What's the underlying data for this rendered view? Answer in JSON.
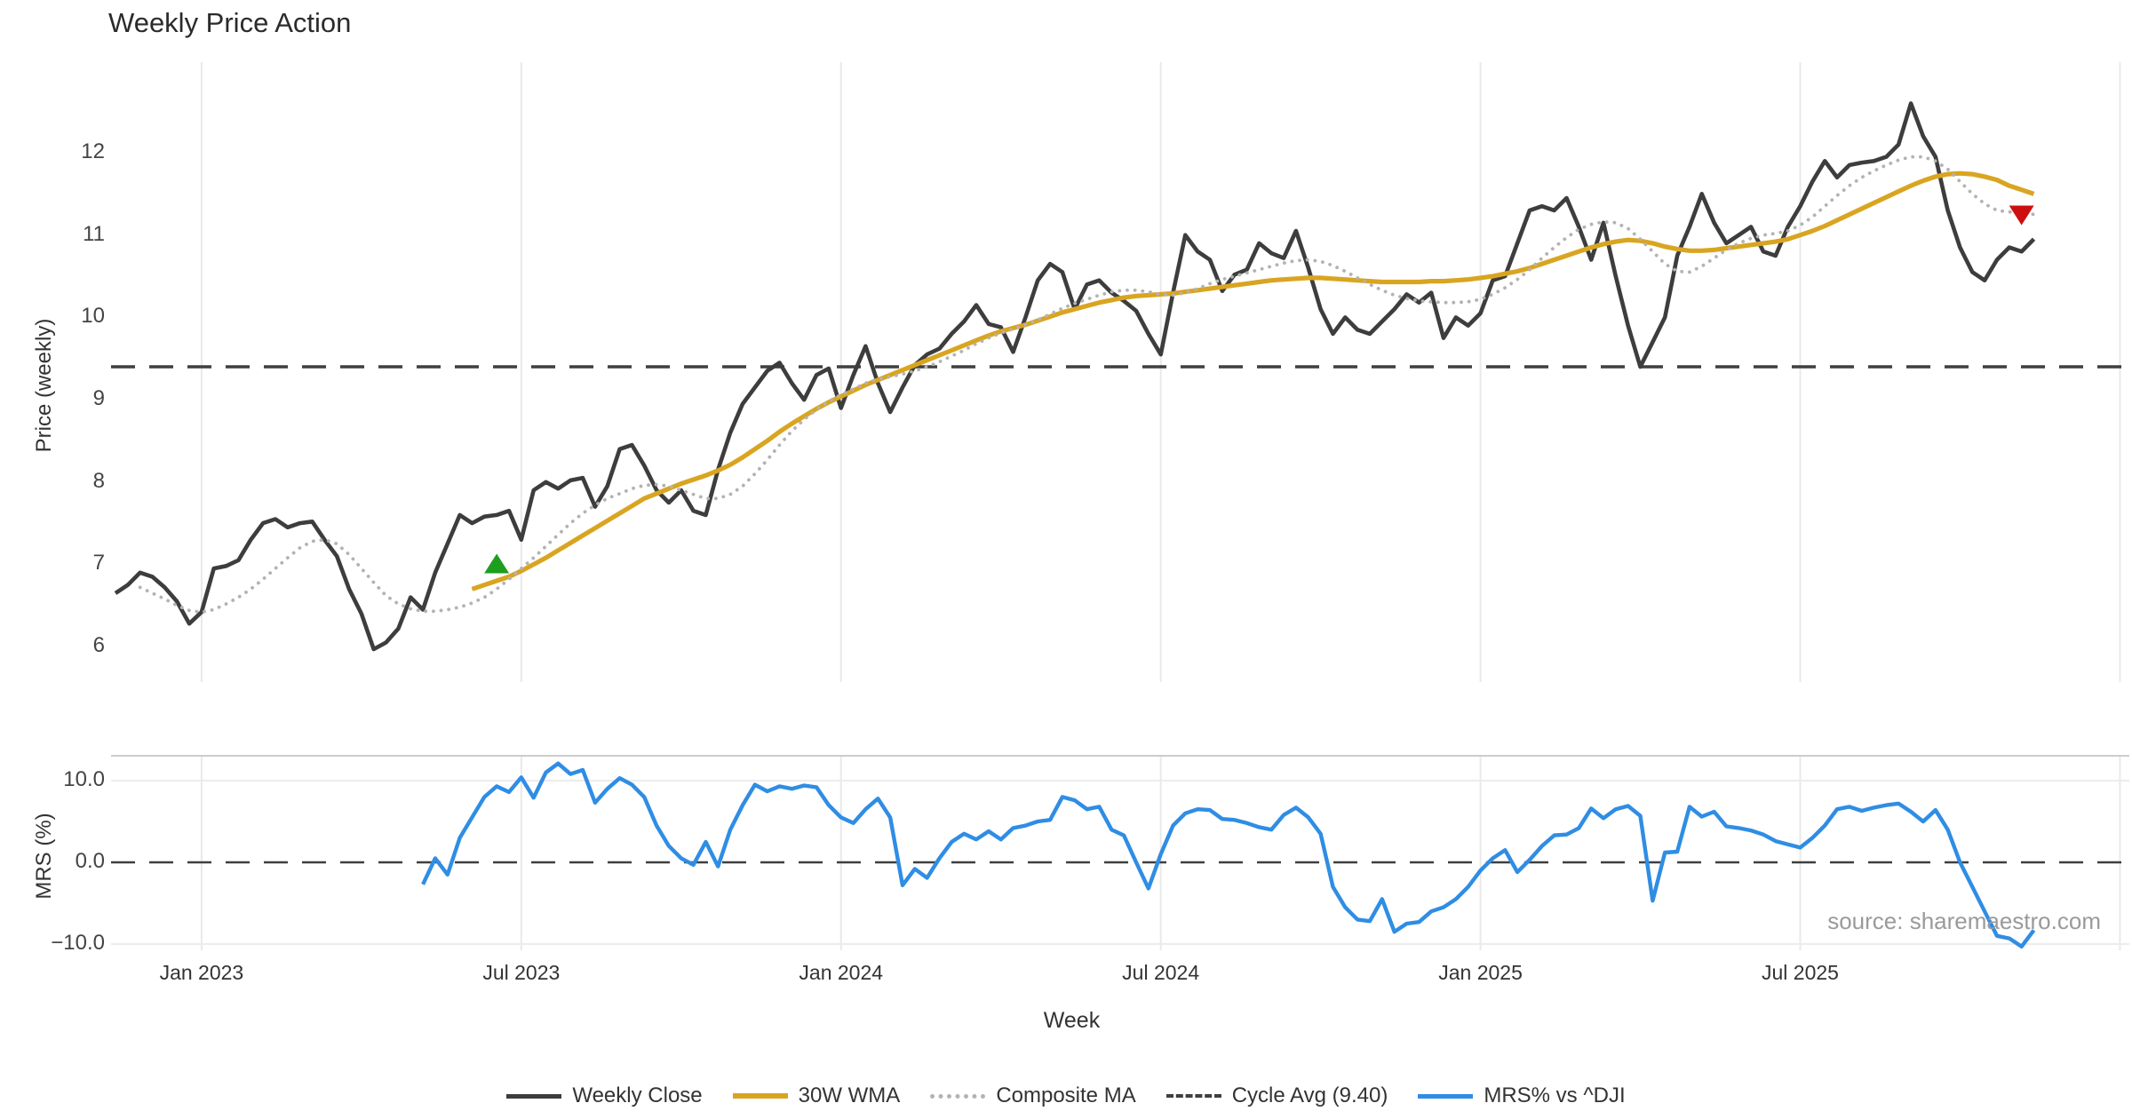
{
  "title": "Weekly Price Action",
  "source_credit": "source: sharemaestro.com",
  "axes": {
    "price_label": "Price (weekly)",
    "mrs_label": "MRS (%)",
    "week_label": "Week",
    "price_ticks": [
      6,
      7,
      8,
      9,
      10,
      11,
      12
    ],
    "mrs_ticks": [
      {
        "label": "10.0",
        "value": 10
      },
      {
        "label": "0.0",
        "value": 0
      },
      {
        "label": "−10.0",
        "value": -10
      }
    ],
    "x_ticks": [
      {
        "label": "Jan 2023",
        "week": 7
      },
      {
        "label": "Jul 2023",
        "week": 33
      },
      {
        "label": "Jan 2024",
        "week": 59
      },
      {
        "label": "Jul 2024",
        "week": 85
      },
      {
        "label": "Jan 2025",
        "week": 111
      },
      {
        "label": "Jul 2025",
        "week": 137
      }
    ],
    "extra_gridline_weeks": [
      163
    ]
  },
  "legend": [
    {
      "label": "Weekly Close",
      "style": "solid",
      "color": "#3d3d3d",
      "thickness": 5
    },
    {
      "label": "30W WMA",
      "style": "solid",
      "color": "#d9a521",
      "thickness": 6
    },
    {
      "label": "Composite MA",
      "style": "dotted",
      "color": "#b3b3b3",
      "thickness": 5
    },
    {
      "label": "Cycle Avg (9.40)",
      "style": "dashed",
      "color": "#3f3f3f",
      "thickness": 4
    },
    {
      "label": "MRS% vs ^DJI",
      "style": "solid",
      "color": "#2f8de4",
      "thickness": 5
    }
  ],
  "colors": {
    "close": "#3d3d3d",
    "wma": "#d9a521",
    "composite": "#b3b3b3",
    "cycle": "#3f3f3f",
    "mrs": "#2f8de4",
    "grid": "#e9e9e9",
    "panel_border": "#cccccc",
    "mrs_grid": "#ececec",
    "buy_marker": "#1e9e1e",
    "sell_marker": "#cc1010"
  },
  "chart_data": {
    "type": "line",
    "x_unit": "weeks",
    "xlim": [
      -0.4,
      163.9
    ],
    "panels": [
      {
        "name": "price",
        "ylabel": "Price (weekly)",
        "ylim": [
          5.6,
          13.1
        ],
        "cycle_avg": 9.4
      },
      {
        "name": "mrs",
        "ylabel": "MRS (%)",
        "ylim": [
          -10.8,
          13.0
        ],
        "zero_line": 0
      }
    ],
    "series": [
      {
        "name": "Weekly Close",
        "panel": "price",
        "start_week": 0,
        "values": [
          6.65,
          6.75,
          6.9,
          6.85,
          6.72,
          6.55,
          6.28,
          6.42,
          6.95,
          6.98,
          7.05,
          7.3,
          7.5,
          7.55,
          7.45,
          7.5,
          7.52,
          7.3,
          7.1,
          6.7,
          6.4,
          5.97,
          6.05,
          6.22,
          6.6,
          6.45,
          6.9,
          7.25,
          7.6,
          7.5,
          7.58,
          7.6,
          7.65,
          7.3,
          7.9,
          8.0,
          7.92,
          8.02,
          8.05,
          7.7,
          7.95,
          8.4,
          8.45,
          8.2,
          7.9,
          7.75,
          7.9,
          7.65,
          7.6,
          8.15,
          8.6,
          8.95,
          9.15,
          9.35,
          9.45,
          9.2,
          9.0,
          9.3,
          9.38,
          8.9,
          9.3,
          9.65,
          9.2,
          8.85,
          9.15,
          9.42,
          9.55,
          9.62,
          9.8,
          9.95,
          10.15,
          9.92,
          9.88,
          9.58,
          10.0,
          10.45,
          10.65,
          10.55,
          10.1,
          10.4,
          10.45,
          10.3,
          10.2,
          10.08,
          9.8,
          9.55,
          10.3,
          11.0,
          10.8,
          10.7,
          10.32,
          10.52,
          10.58,
          10.9,
          10.78,
          10.72,
          11.05,
          10.6,
          10.1,
          9.8,
          10.0,
          9.85,
          9.8,
          9.95,
          10.1,
          10.28,
          10.18,
          10.3,
          9.75,
          10.0,
          9.9,
          10.05,
          10.45,
          10.5,
          10.9,
          11.3,
          11.35,
          11.3,
          11.45,
          11.1,
          10.7,
          11.15,
          10.5,
          9.9,
          9.4,
          9.7,
          10.0,
          10.75,
          11.1,
          11.5,
          11.15,
          10.9,
          11.0,
          11.1,
          10.8,
          10.75,
          11.1,
          11.35,
          11.65,
          11.9,
          11.7,
          11.85,
          11.88,
          11.9,
          11.95,
          12.1,
          12.6,
          12.2,
          11.95,
          11.3,
          10.85,
          10.55,
          10.45,
          10.7,
          10.85,
          10.8,
          10.95
        ]
      },
      {
        "name": "30W WMA",
        "panel": "price",
        "start_week": 29,
        "values": [
          6.7,
          6.75,
          6.8,
          6.85,
          6.92,
          7.0,
          7.08,
          7.17,
          7.26,
          7.35,
          7.44,
          7.53,
          7.62,
          7.71,
          7.8,
          7.86,
          7.92,
          7.98,
          8.03,
          8.08,
          8.14,
          8.21,
          8.3,
          8.4,
          8.5,
          8.61,
          8.71,
          8.8,
          8.89,
          8.97,
          9.04,
          9.11,
          9.18,
          9.24,
          9.3,
          9.36,
          9.42,
          9.48,
          9.54,
          9.6,
          9.66,
          9.72,
          9.78,
          9.83,
          9.87,
          9.91,
          9.96,
          10.01,
          10.06,
          10.1,
          10.14,
          10.18,
          10.21,
          10.24,
          10.26,
          10.27,
          10.28,
          10.29,
          10.31,
          10.33,
          10.35,
          10.37,
          10.39,
          10.41,
          10.43,
          10.45,
          10.46,
          10.47,
          10.48,
          10.48,
          10.47,
          10.46,
          10.45,
          10.44,
          10.43,
          10.43,
          10.43,
          10.43,
          10.44,
          10.44,
          10.45,
          10.46,
          10.48,
          10.5,
          10.53,
          10.56,
          10.6,
          10.65,
          10.7,
          10.75,
          10.8,
          10.85,
          10.89,
          10.92,
          10.94,
          10.93,
          10.9,
          10.86,
          10.83,
          10.81,
          10.81,
          10.82,
          10.84,
          10.86,
          10.88,
          10.9,
          10.92,
          10.95,
          11.0,
          11.05,
          11.11,
          11.18,
          11.25,
          11.32,
          11.39,
          11.46,
          11.53,
          11.6,
          11.66,
          11.71,
          11.74,
          11.75,
          11.74,
          11.71,
          11.67,
          11.6,
          11.55,
          11.5
        ]
      },
      {
        "name": "Composite MA",
        "panel": "price",
        "start_week": 2,
        "values": [
          6.72,
          6.65,
          6.58,
          6.5,
          6.44,
          6.42,
          6.45,
          6.52,
          6.6,
          6.7,
          6.82,
          6.95,
          7.08,
          7.2,
          7.28,
          7.3,
          7.25,
          7.12,
          6.95,
          6.78,
          6.62,
          6.52,
          6.46,
          6.43,
          6.43,
          6.45,
          6.48,
          6.53,
          6.6,
          6.7,
          6.82,
          6.95,
          7.08,
          7.22,
          7.36,
          7.5,
          7.62,
          7.72,
          7.8,
          7.86,
          7.92,
          7.96,
          7.97,
          7.95,
          7.9,
          7.85,
          7.8,
          7.8,
          7.85,
          7.95,
          8.1,
          8.27,
          8.45,
          8.62,
          8.76,
          8.88,
          8.98,
          9.06,
          9.13,
          9.2,
          9.25,
          9.28,
          9.31,
          9.35,
          9.4,
          9.46,
          9.53,
          9.6,
          9.68,
          9.75,
          9.81,
          9.86,
          9.91,
          9.97,
          10.04,
          10.11,
          10.17,
          10.22,
          10.27,
          10.31,
          10.33,
          10.33,
          10.31,
          10.28,
          10.27,
          10.3,
          10.35,
          10.41,
          10.46,
          10.5,
          10.54,
          10.58,
          10.62,
          10.66,
          10.69,
          10.7,
          10.68,
          10.63,
          10.56,
          10.48,
          10.4,
          10.33,
          10.27,
          10.23,
          10.2,
          10.19,
          10.18,
          10.18,
          10.19,
          10.22,
          10.28,
          10.36,
          10.46,
          10.58,
          10.72,
          10.85,
          10.97,
          11.07,
          11.13,
          11.16,
          11.15,
          11.08,
          10.95,
          10.8,
          10.65,
          10.56,
          10.55,
          10.62,
          10.72,
          10.82,
          10.9,
          10.96,
          11.0,
          11.02,
          11.05,
          11.12,
          11.22,
          11.35,
          11.48,
          11.6,
          11.7,
          11.78,
          11.85,
          11.91,
          11.95,
          11.95,
          11.9,
          11.8,
          11.65,
          11.5,
          11.38,
          11.3,
          11.28,
          11.28,
          11.25
        ]
      },
      {
        "name": "MRS% vs ^DJI",
        "panel": "mrs",
        "start_week": 25,
        "values": [
          -2.7,
          0.5,
          -1.5,
          3.0,
          5.5,
          8.0,
          9.3,
          8.6,
          10.4,
          7.9,
          11.0,
          12.1,
          10.8,
          11.3,
          7.3,
          9.0,
          10.3,
          9.5,
          8.0,
          4.5,
          2.0,
          0.5,
          -0.3,
          2.5,
          -0.5,
          4.0,
          7.0,
          9.5,
          8.7,
          9.3,
          9.0,
          9.4,
          9.2,
          7.0,
          5.5,
          4.8,
          6.5,
          7.8,
          5.5,
          -2.8,
          -0.8,
          -1.9,
          0.5,
          2.5,
          3.5,
          2.8,
          3.8,
          2.8,
          4.2,
          4.5,
          5.0,
          5.2,
          8.0,
          7.6,
          6.5,
          6.8,
          4.0,
          3.3,
          0.0,
          -3.2,
          1.0,
          4.5,
          6.0,
          6.5,
          6.4,
          5.3,
          5.2,
          4.8,
          4.3,
          4.0,
          5.8,
          6.7,
          5.5,
          3.5,
          -3.0,
          -5.5,
          -7.0,
          -7.2,
          -4.5,
          -8.5,
          -7.5,
          -7.3,
          -6.0,
          -5.5,
          -4.5,
          -3.0,
          -1.0,
          0.5,
          1.5,
          -1.2,
          0.3,
          2.0,
          3.3,
          3.4,
          4.2,
          6.6,
          5.4,
          6.5,
          6.9,
          5.7,
          -4.7,
          1.2,
          1.3,
          6.8,
          5.6,
          6.2,
          4.4,
          4.2,
          3.9,
          3.4,
          2.6,
          2.2,
          1.8,
          3.0,
          4.5,
          6.5,
          6.8,
          6.3,
          6.7,
          7.0,
          7.2,
          6.2,
          5.0,
          6.4,
          4.0,
          0.0,
          -3.0,
          -6.0,
          -9.0,
          -9.3,
          -10.3,
          -8.3
        ]
      }
    ],
    "markers": [
      {
        "type": "buy-up-triangle",
        "panel": "price",
        "week": 31,
        "value": 7.0
      },
      {
        "type": "sell-down-triangle",
        "panel": "price",
        "week": 155,
        "value": 11.25
      }
    ]
  }
}
